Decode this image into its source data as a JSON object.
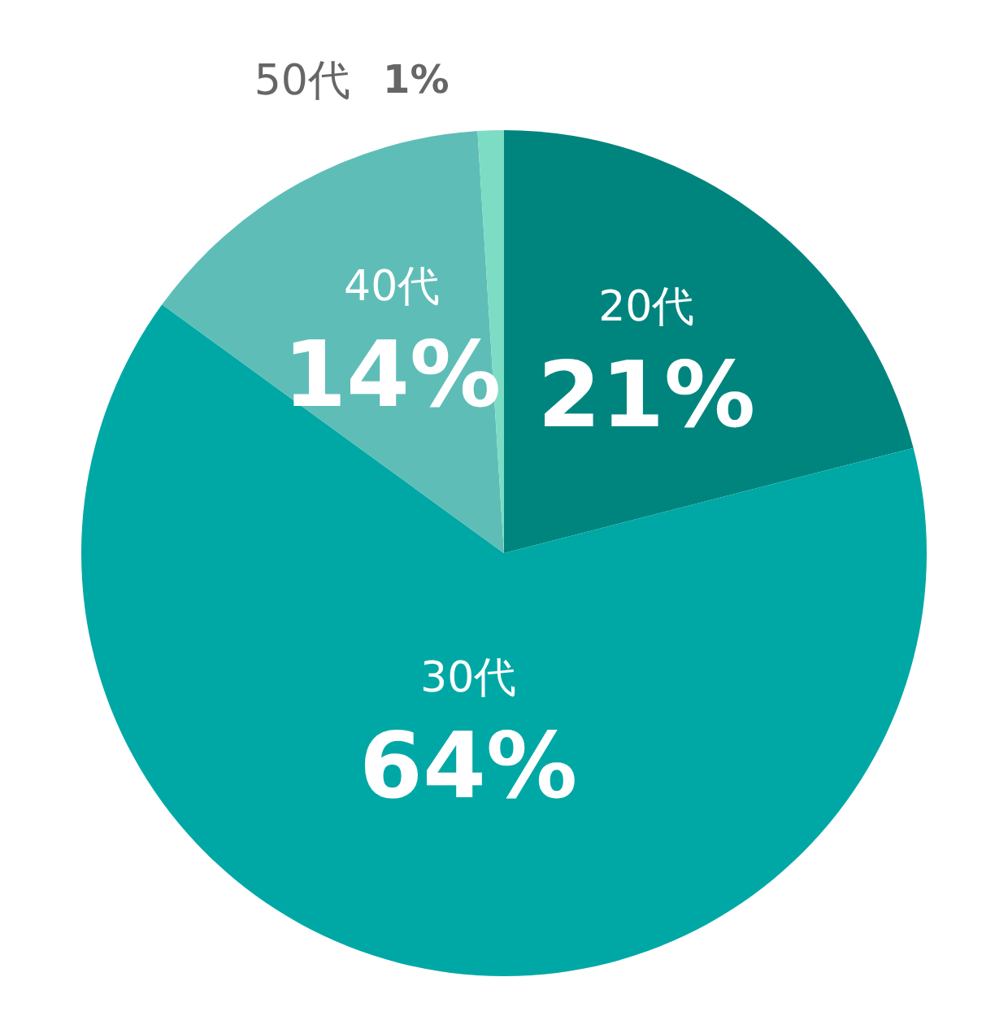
{
  "chart_data": {
    "type": "pie",
    "categories": [
      "20代",
      "30代",
      "40代",
      "50代"
    ],
    "values": [
      21,
      64,
      14,
      1
    ],
    "colors": [
      "#00857e",
      "#00a8a5",
      "#5fbdb8",
      "#7ddcc4"
    ],
    "value_labels": [
      "21%",
      "64%",
      "14%",
      "1%"
    ],
    "legend": false
  }
}
